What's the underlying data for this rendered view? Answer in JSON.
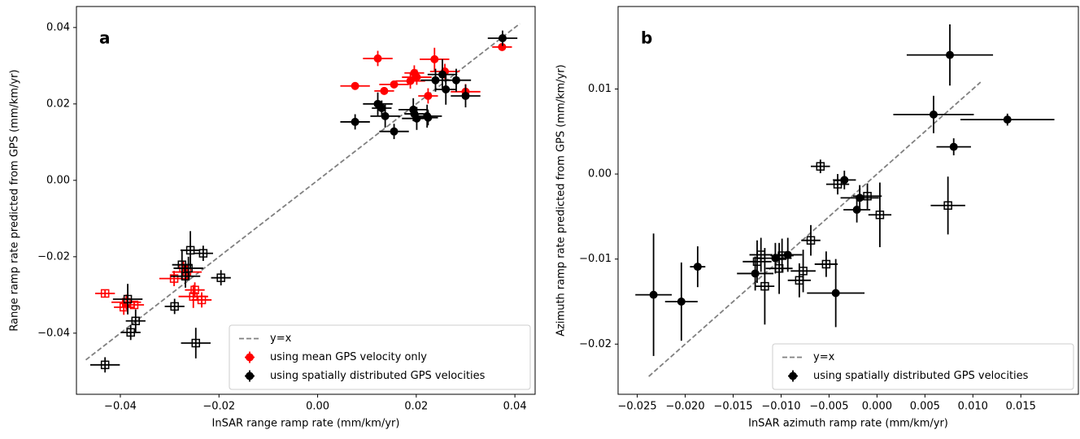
{
  "chart_data": [
    {
      "type": "scatter",
      "panel_label": "a",
      "xlabel": "InSAR range ramp rate (mm/km/yr)",
      "ylabel": "Range ramp rate predicted from GPS (mm/km/yr)",
      "xlim": [
        -0.0489,
        0.0441
      ],
      "ylim": [
        -0.056,
        0.0455
      ],
      "xticks": [
        {
          "value": -0.04,
          "label": "−0.04"
        },
        {
          "value": -0.02,
          "label": "−0.02"
        },
        {
          "value": 0,
          "label": "0.00"
        },
        0.02,
        0.04
      ],
      "yticks": [
        {
          "value": -0.04,
          "label": "−0.04"
        },
        {
          "value": -0.02,
          "label": "−0.02"
        },
        {
          "value": 0,
          "label": "0.00"
        },
        0.02,
        0.04
      ],
      "legend": "lower right",
      "reference_line": {
        "name": "y=x",
        "color": "#808080",
        "x": [
          -0.047,
          0.041
        ],
        "y": [
          -0.047,
          0.041
        ]
      },
      "series": [
        {
          "name": "using mean GPS velocity only",
          "color": "#ff0000",
          "markers": [
            "o",
            "o",
            "o",
            "o",
            "o",
            "o",
            "o",
            "o",
            "o",
            "o",
            "o",
            "o",
            "s",
            "s",
            "s",
            "s",
            "s",
            "s",
            "s",
            "s",
            "s",
            "s"
          ],
          "x": [
            0.0122,
            0.0076,
            0.0135,
            0.0155,
            0.0188,
            0.0196,
            0.0201,
            0.0237,
            0.0224,
            0.0258,
            0.03,
            0.0374,
            -0.0431,
            -0.0388,
            -0.0372,
            -0.0291,
            -0.0272,
            -0.0265,
            -0.0252,
            -0.0249,
            -0.0235,
            -0.0393
          ],
          "y": [
            0.0319,
            0.0247,
            0.0234,
            0.0251,
            0.026,
            0.0281,
            0.027,
            0.0317,
            0.0221,
            0.0285,
            0.0232,
            0.0349,
            -0.0296,
            -0.0319,
            -0.0326,
            -0.0257,
            -0.023,
            -0.024,
            -0.0304,
            -0.0287,
            -0.0313,
            -0.0332
          ],
          "xerr": [
            0.003,
            0.003,
            0.002,
            0.003,
            0.003,
            0.002,
            0.003,
            0.003,
            0.002,
            0.003,
            0.003,
            0.002,
            0.002,
            0.003,
            0.002,
            0.003,
            0.002,
            0.003,
            0.003,
            0.002,
            0.002,
            0.002
          ],
          "yerr": [
            0.002,
            0.001,
            0.001,
            0.001,
            0.002,
            0.002,
            0.002,
            0.003,
            0.002,
            0.002,
            0.002,
            0.001,
            0.001,
            0.002,
            0.001,
            0.002,
            0.002,
            0.002,
            0.003,
            0.002,
            0.002,
            0.002
          ]
        },
        {
          "name": "using spatially distributed GPS velocities",
          "color": "#000000",
          "markers": [
            "o",
            "o",
            "o",
            "o",
            "o",
            "o",
            "o",
            "o",
            "o",
            "o",
            "o",
            "o",
            "o",
            "o",
            "o",
            "o",
            "s",
            "s",
            "s",
            "s",
            "s",
            "s",
            "s",
            "s",
            "s",
            "s",
            "s",
            "s"
          ],
          "x": [
            0.0076,
            0.0122,
            0.013,
            0.0137,
            0.0155,
            0.0194,
            0.0201,
            0.0196,
            0.0222,
            0.0224,
            0.0239,
            0.0253,
            0.026,
            0.0281,
            0.03,
            0.0375,
            -0.0431,
            -0.0385,
            -0.0379,
            -0.0369,
            -0.029,
            -0.0275,
            -0.0268,
            -0.0258,
            -0.0247,
            -0.0232,
            -0.0196,
            -0.0262
          ],
          "y": [
            0.0153,
            0.02,
            0.0189,
            0.0168,
            0.0128,
            0.0185,
            0.0162,
            0.0174,
            0.0168,
            0.0164,
            0.0262,
            0.0277,
            0.0238,
            0.0262,
            0.0221,
            0.0372,
            -0.0483,
            -0.0311,
            -0.0398,
            -0.0368,
            -0.033,
            -0.0221,
            -0.0251,
            -0.0183,
            -0.0426,
            -0.0191,
            -0.0255,
            -0.023
          ],
          "xerr": [
            0.003,
            0.003,
            0.002,
            0.003,
            0.003,
            0.003,
            0.003,
            0.002,
            0.003,
            0.002,
            0.003,
            0.003,
            0.002,
            0.003,
            0.003,
            0.003,
            0.003,
            0.003,
            0.002,
            0.002,
            0.002,
            0.002,
            0.003,
            0.002,
            0.003,
            0.002,
            0.002,
            0.003
          ],
          "yerr": [
            0.002,
            0.003,
            0.002,
            0.003,
            0.002,
            0.003,
            0.003,
            0.002,
            0.003,
            0.002,
            0.003,
            0.004,
            0.004,
            0.003,
            0.003,
            0.002,
            0.002,
            0.004,
            0.002,
            0.003,
            0.002,
            0.004,
            0.003,
            0.005,
            0.004,
            0.002,
            0.002,
            0.003
          ]
        }
      ]
    },
    {
      "type": "scatter",
      "panel_label": "b",
      "xlabel": "InSAR azimuth ramp rate (mm/km/yr)",
      "ylabel": "Azimuth ramp rate predicted from GPS (mm/km/yr)",
      "xlim": [
        -0.027,
        0.021
      ],
      "ylim": [
        -0.0259,
        0.0197
      ],
      "xticks": [
        {
          "value": -0.025,
          "label": "−0.025"
        },
        {
          "value": -0.02,
          "label": "−0.020"
        },
        {
          "value": -0.015,
          "label": "−0.015"
        },
        {
          "value": -0.01,
          "label": "−0.010"
        },
        {
          "value": -0.005,
          "label": "−0.005"
        },
        {
          "value": 0,
          "label": "0.000"
        },
        0.005,
        {
          "value": 0.01,
          "label": "0.010"
        },
        0.015
      ],
      "yticks": [
        {
          "value": -0.02,
          "label": "−0.02"
        },
        {
          "value": -0.01,
          "label": "−0.01"
        },
        {
          "value": 0,
          "label": "0.00"
        },
        0.01
      ],
      "legend": "lower right",
      "reference_line": {
        "name": "y=x",
        "color": "#808080",
        "x": [
          -0.0238,
          0.0108
        ],
        "y": [
          -0.0238,
          0.0108
        ]
      },
      "series": [
        {
          "name": "using spatially distributed GPS velocities",
          "color": "#000000",
          "markers": [
            "o",
            "o",
            "o",
            "o",
            "o",
            "o",
            "o",
            "o",
            "o",
            "o",
            "o",
            "o",
            "o",
            "o",
            "s",
            "s",
            "s",
            "s",
            "s",
            "s",
            "s",
            "s",
            "s",
            "s",
            "s",
            "s",
            "s",
            "s"
          ],
          "x": [
            -0.0233,
            -0.0204,
            -0.0187,
            -0.0127,
            -0.0106,
            -0.0093,
            -0.0043,
            -0.0034,
            -0.0021,
            -0.0018,
            0.0059,
            0.0076,
            0.008,
            0.0136,
            -0.0059,
            -0.0041,
            -0.001,
            0.0003,
            0.0074,
            -0.0069,
            -0.0053,
            -0.0125,
            -0.0121,
            -0.0102,
            -0.0081,
            -0.0077,
            -0.0117,
            -0.0099
          ],
          "y": [
            -0.0142,
            -0.015,
            -0.0109,
            -0.0117,
            -0.0099,
            -0.0095,
            -0.014,
            -0.0007,
            -0.0042,
            -0.0028,
            0.007,
            0.014,
            0.0032,
            0.0064,
            0.0009,
            -0.0012,
            -0.0026,
            -0.0048,
            -0.0037,
            -0.0078,
            -0.0106,
            -0.0103,
            -0.0095,
            -0.0111,
            -0.0125,
            -0.0114,
            -0.0132,
            -0.0096
          ],
          "xerr": [
            0.0019,
            0.0017,
            0.0008,
            0.0019,
            0.0017,
            0.0015,
            0.003,
            0.0012,
            0.0014,
            0.002,
            0.0042,
            0.0045,
            0.0018,
            0.0049,
            0.001,
            0.0012,
            0.0015,
            0.0012,
            0.0018,
            0.001,
            0.0012,
            0.0015,
            0.0012,
            0.0014,
            0.0012,
            0.0013,
            0.001,
            0.0012
          ],
          "yerr": [
            0.0072,
            0.0046,
            0.0024,
            0.002,
            0.0018,
            0.002,
            0.004,
            0.0011,
            0.0015,
            0.0015,
            0.0022,
            0.0036,
            0.001,
            0.0007,
            0.0008,
            0.0012,
            0.0015,
            0.0038,
            0.0034,
            0.0018,
            0.0015,
            0.0025,
            0.002,
            0.003,
            0.002,
            0.0025,
            0.0045,
            0.002
          ]
        }
      ]
    }
  ]
}
